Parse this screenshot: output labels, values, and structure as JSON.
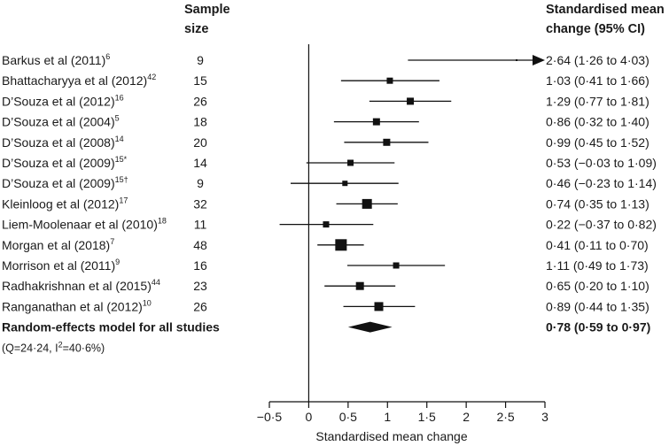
{
  "chart_data": {
    "type": "forest",
    "headers": {
      "sample_size": [
        "Sample",
        "size"
      ],
      "ci": [
        "Standardised mean",
        "change (95% CI)"
      ]
    },
    "xlabel": "Standardised mean change",
    "xlim": [
      -0.5,
      3
    ],
    "xticks": [
      -0.5,
      0,
      0.5,
      1,
      1.5,
      2,
      2.5,
      3
    ],
    "xtick_labels": [
      "−0·5",
      "0",
      "0·5",
      "1",
      "1·5",
      "2",
      "2·5",
      "3"
    ],
    "studies": [
      {
        "name": "Barkus et al (2011)",
        "ref": "6",
        "n": "9",
        "est": 2.64,
        "lo": 1.26,
        "hi": 4.03,
        "weight": 2,
        "label": "2·64 (1·26 to 4·03)",
        "arrow": true
      },
      {
        "name": "Bhattacharyya et al (2012)",
        "ref": "42",
        "n": "15",
        "est": 1.03,
        "lo": 0.41,
        "hi": 1.66,
        "weight": 7,
        "label": "1·03 (0·41 to 1·66)"
      },
      {
        "name": "D’Souza et al (2012)",
        "ref": "16",
        "n": "26",
        "est": 1.29,
        "lo": 0.77,
        "hi": 1.81,
        "weight": 8,
        "label": "1·29 (0·77 to 1·81)"
      },
      {
        "name": "D’Souza et al (2004)",
        "ref": "5",
        "n": "18",
        "est": 0.86,
        "lo": 0.32,
        "hi": 1.4,
        "weight": 8,
        "label": "0·86 (0·32 to 1·40)"
      },
      {
        "name": "D’Souza et al (2008)",
        "ref": "14",
        "n": "20",
        "est": 0.99,
        "lo": 0.45,
        "hi": 1.52,
        "weight": 8,
        "label": "0·99 (0·45 to 1·52)"
      },
      {
        "name": "D’Souza et al (2009)",
        "ref": "15*",
        "n": "14",
        "est": 0.53,
        "lo": -0.03,
        "hi": 1.09,
        "weight": 7,
        "label": "0·53 (−0·03 to 1·09)"
      },
      {
        "name": "D’Souza et al (2009)",
        "ref": "15†",
        "n": "9",
        "est": 0.46,
        "lo": -0.23,
        "hi": 1.14,
        "weight": 6,
        "label": "0·46 (−0·23 to 1·14)"
      },
      {
        "name": "Kleinloog et al (2012)",
        "ref": "17",
        "n": "32",
        "est": 0.74,
        "lo": 0.35,
        "hi": 1.13,
        "weight": 11,
        "label": "0·74 (0·35 to 1·13)"
      },
      {
        "name": "Liem-Moolenaar et al (2010)",
        "ref": "18",
        "n": "11",
        "est": 0.22,
        "lo": -0.37,
        "hi": 0.82,
        "weight": 7,
        "label": "0·22 (−0·37 to 0·82)"
      },
      {
        "name": "Morgan et al (2018)",
        "ref": "7",
        "n": "48",
        "est": 0.41,
        "lo": 0.11,
        "hi": 0.7,
        "weight": 13,
        "label": "0·41 (0·11 to 0·70)"
      },
      {
        "name": "Morrison et al (2011)",
        "ref": "9",
        "n": "16",
        "est": 1.11,
        "lo": 0.49,
        "hi": 1.73,
        "weight": 7,
        "label": "1·11 (0·49 to 1·73)"
      },
      {
        "name": "Radhakrishnan et al (2015)",
        "ref": "44",
        "n": "23",
        "est": 0.65,
        "lo": 0.2,
        "hi": 1.1,
        "weight": 9,
        "label": "0·65 (0·20 to 1·10)"
      },
      {
        "name": "Ranganathan et al (2012)",
        "ref": "10",
        "n": "26",
        "est": 0.89,
        "lo": 0.44,
        "hi": 1.35,
        "weight": 10,
        "label": "0·89 (0·44 to 1·35)"
      }
    ],
    "summary": {
      "name": "Random-effects model for all studies",
      "est": 0.78,
      "lo": 0.59,
      "hi": 0.97,
      "label": "0·78 (0·59 to 0·97)",
      "heterogeneity": {
        "q": "(Q=24·24, I",
        "sup": "2",
        "i2": "=40·6%)"
      }
    }
  }
}
